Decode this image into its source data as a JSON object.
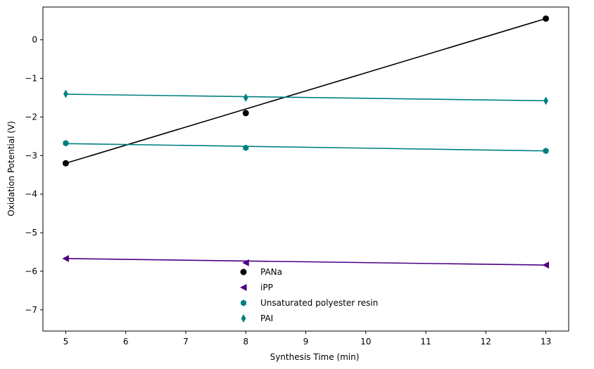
{
  "chart_data": {
    "type": "scatter",
    "title": "",
    "xlabel": "Synthesis Time (min)",
    "ylabel": "Oxidation Potential (V)",
    "xlim": [
      4.62,
      13.38
    ],
    "ylim": [
      -7.55,
      0.85
    ],
    "xticks": [
      5,
      6,
      7,
      8,
      9,
      10,
      11,
      12,
      13
    ],
    "yticks": [
      0,
      -1,
      -2,
      -3,
      -4,
      -5,
      -6,
      -7
    ],
    "ytick_labels": [
      "0",
      "−1",
      "−2",
      "−3",
      "−4",
      "−5",
      "−6",
      "−7"
    ],
    "grid": false,
    "legend_position": "bottom-center",
    "series": [
      {
        "name": "PANa",
        "marker": "circle",
        "color": "#000000",
        "x": [
          5,
          8,
          13
        ],
        "y": [
          -3.2,
          -1.9,
          0.55
        ],
        "fit": [
          [
            5,
            -3.2
          ],
          [
            13,
            0.55
          ]
        ]
      },
      {
        "name": "iPP",
        "marker": "triangle-left",
        "color": "#4b0082",
        "x": [
          5,
          8,
          13
        ],
        "y": [
          -5.67,
          -5.78,
          -5.84
        ],
        "fit": [
          [
            5,
            -5.67
          ],
          [
            13,
            -5.84
          ]
        ]
      },
      {
        "name": "Unsaturated polyester resin",
        "marker": "hexagon",
        "color": "#008080",
        "x": [
          5,
          8,
          13
        ],
        "y": [
          -2.68,
          -2.8,
          -2.88
        ],
        "fit": [
          [
            5,
            -2.69
          ],
          [
            13,
            -2.88
          ]
        ]
      },
      {
        "name": "PAI",
        "marker": "thin-diamond",
        "color": "#008080",
        "x": [
          5,
          8,
          13
        ],
        "y": [
          -1.4,
          -1.5,
          -1.58
        ],
        "fit": [
          [
            5,
            -1.41
          ],
          [
            13,
            -1.58
          ]
        ]
      }
    ]
  }
}
